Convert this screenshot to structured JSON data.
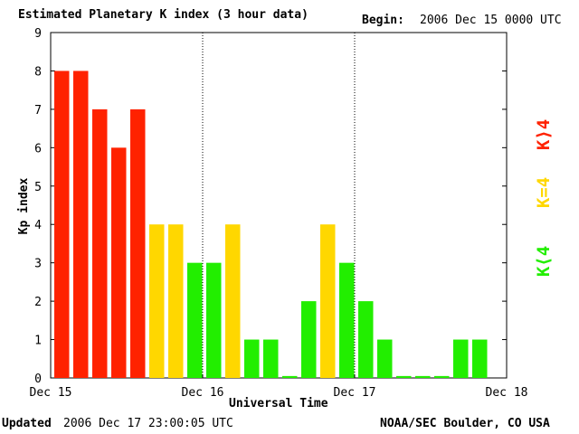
{
  "header": {
    "title": "Estimated Planetary K index (3 hour data)",
    "begin_label": "Begin:",
    "begin_value": "2006 Dec 15 0000 UTC"
  },
  "footer": {
    "updated_label": "Updated",
    "updated_value": "2006 Dec 17 23:00:05 UTC",
    "source": "NOAA/SEC Boulder, CO USA"
  },
  "legend": [
    {
      "label": "K>4",
      "color": "#ff2200"
    },
    {
      "label": "K=4",
      "color": "#ffd700"
    },
    {
      "label": "K<4",
      "color": "#22ee00"
    }
  ],
  "chart_data": {
    "type": "bar",
    "title": "Estimated Planetary K index (3 hour data)",
    "xlabel": "Universal Time",
    "ylabel": "Kp index",
    "ylim": [
      0,
      9
    ],
    "yticks": [
      "0",
      "1",
      "2",
      "3",
      "4",
      "5",
      "6",
      "7",
      "8",
      "9"
    ],
    "xticks": [
      "Dec 15",
      "Dec 16",
      "Dec 17",
      "Dec 18"
    ],
    "values": [
      8,
      8,
      7,
      6,
      7,
      4,
      4,
      3,
      3,
      4,
      1,
      1,
      0.05,
      2,
      4,
      3,
      2,
      1,
      0.05,
      0.05,
      0.05,
      1,
      1
    ],
    "colors": {
      "high": "#ff2200",
      "equal": "#ffd700",
      "low": "#22ee00"
    }
  }
}
